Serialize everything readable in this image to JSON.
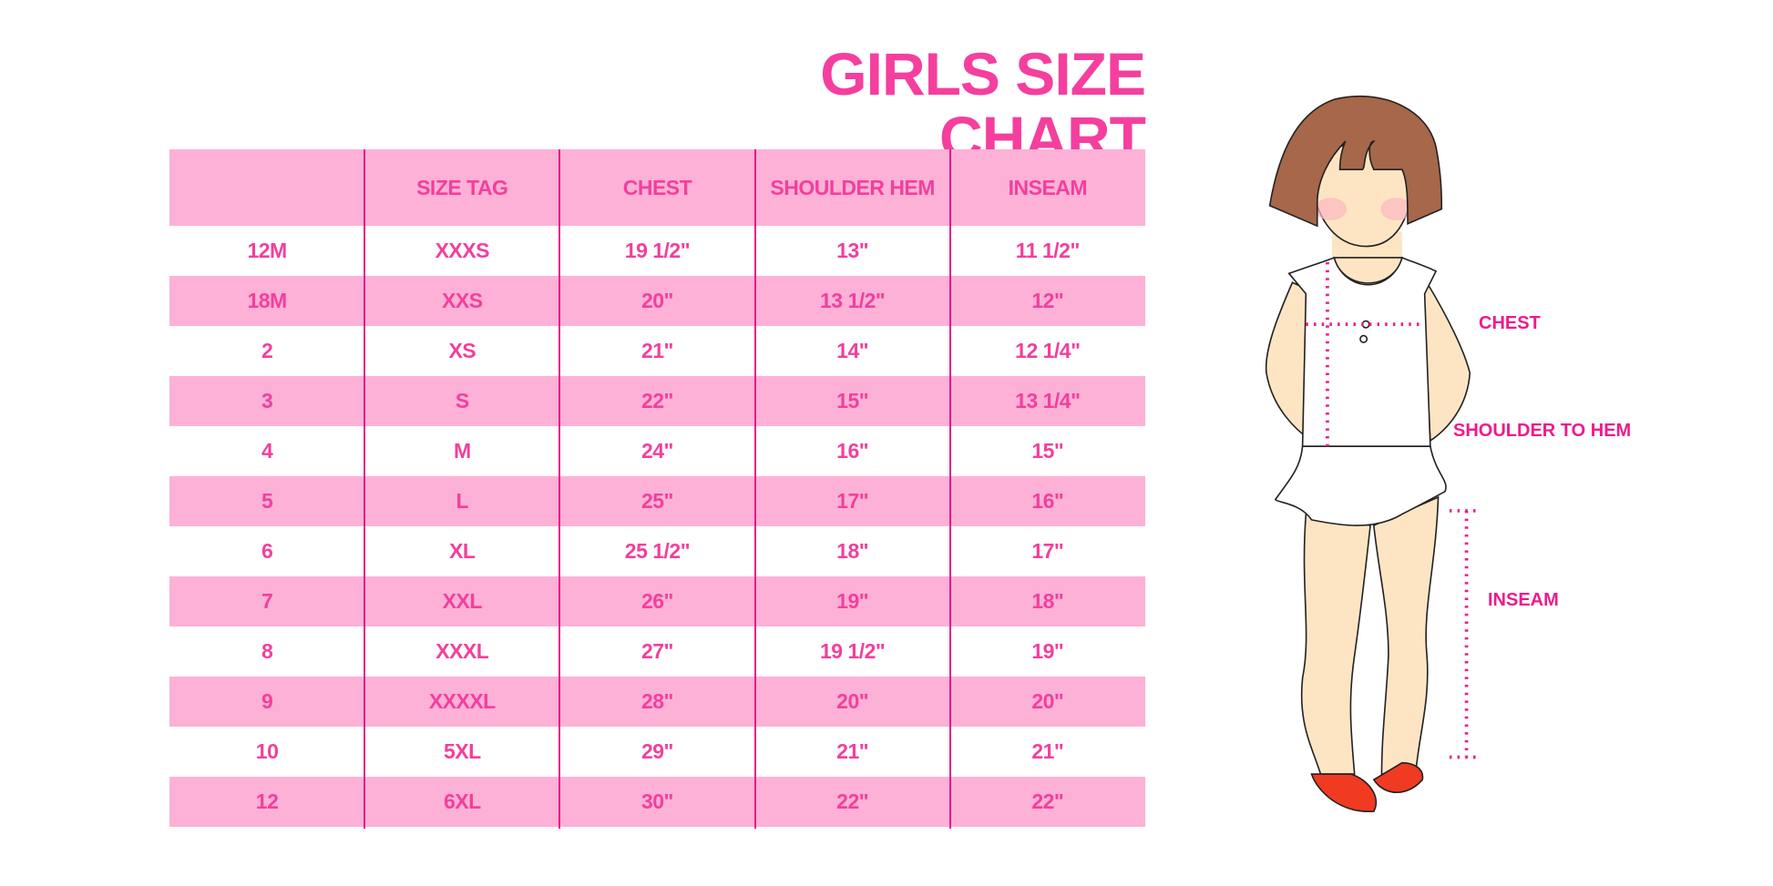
{
  "title": "GIRLS SIZE CHART",
  "table": {
    "headers": [
      "",
      "SIZE TAG",
      "CHEST",
      "SHOULDER HEM",
      "INSEAM"
    ],
    "rows": [
      [
        "12M",
        "XXXS",
        "19 1/2\"",
        "13\"",
        "11 1/2\""
      ],
      [
        "18M",
        "XXS",
        "20\"",
        "13 1/2\"",
        "12\""
      ],
      [
        "2",
        "XS",
        "21\"",
        "14\"",
        "12 1/4\""
      ],
      [
        "3",
        "S",
        "22\"",
        "15\"",
        "13 1/4\""
      ],
      [
        "4",
        "M",
        "24\"",
        "16\"",
        "15\""
      ],
      [
        "5",
        "L",
        "25\"",
        "17\"",
        "16\""
      ],
      [
        "6",
        "XL",
        "25 1/2\"",
        "18\"",
        "17\""
      ],
      [
        "7",
        "XXL",
        "26\"",
        "19\"",
        "18\""
      ],
      [
        "8",
        "XXXL",
        "27\"",
        "19 1/2\"",
        "19\""
      ],
      [
        "9",
        "XXXXL",
        "28\"",
        "20\"",
        "20\""
      ],
      [
        "10",
        "5XL",
        "29\"",
        "21\"",
        "21\""
      ],
      [
        "12",
        "6XL",
        "30\"",
        "22\"",
        "22\""
      ]
    ]
  },
  "diagram": {
    "labels": {
      "chest": "CHEST",
      "shoulder_to_hem": "SHOULDER TO HEM",
      "inseam": "INSEAM"
    }
  },
  "colors": {
    "title": "#f43f9e",
    "row_pink": "#fdb1d6",
    "text": "#f33f9c",
    "divider": "#e8148c",
    "measure": "#ee1a8c"
  }
}
